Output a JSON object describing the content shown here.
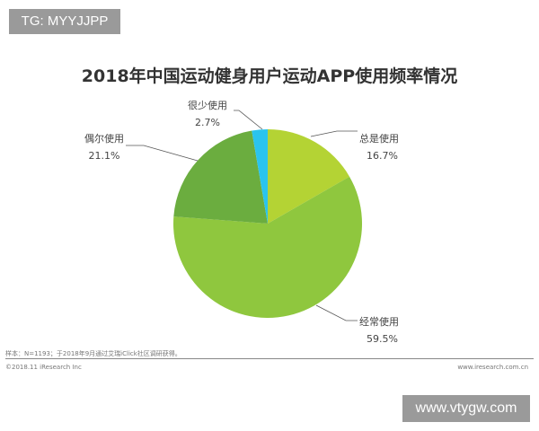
{
  "watermark_top": "TG: MYYJJPP",
  "watermark_bottom": "www.vtygw.com",
  "footer": {
    "note": "样本：N=1193；于2018年9月通过艾瑞iClick社区调研获得。",
    "copyright": "©2018.11 iResearch Inc",
    "site": "www.iresearch.com.cn"
  },
  "chart_data": {
    "type": "pie",
    "title": "2018年中国运动健身用户运动APP使用频率情况",
    "slices": [
      {
        "label": "总是使用",
        "value": 16.7,
        "display": "16.7%",
        "color": "#b4d334"
      },
      {
        "label": "经常使用",
        "value": 59.5,
        "display": "59.5%",
        "color": "#8fc73e"
      },
      {
        "label": "偶尔使用",
        "value": 21.1,
        "display": "21.1%",
        "color": "#6bad3f"
      },
      {
        "label": "很少使用",
        "value": 2.7,
        "display": "2.7%",
        "color": "#2ac4ee"
      }
    ]
  }
}
